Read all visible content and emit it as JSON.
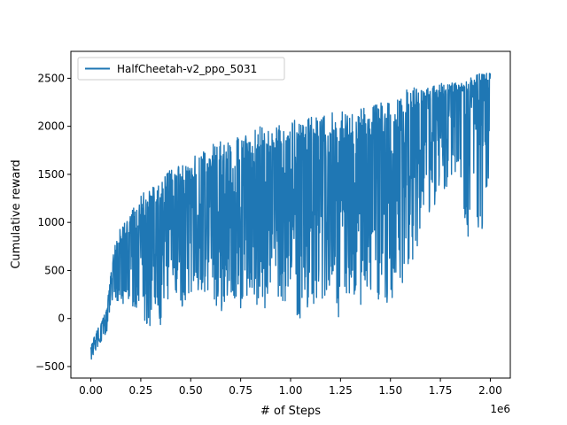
{
  "chart_data": {
    "type": "line",
    "xlabel": "# of Steps",
    "ylabel": "Cumulative reward",
    "x_offset_text": "1e6",
    "x_unit_scale": 1000000,
    "xlim": [
      -0.1,
      2.1
    ],
    "ylim": [
      -620,
      2780
    ],
    "x_ticks": [
      0.0,
      0.25,
      0.5,
      0.75,
      1.0,
      1.25,
      1.5,
      1.75,
      2.0
    ],
    "x_tick_labels": [
      "0.00",
      "0.25",
      "0.50",
      "0.75",
      "1.00",
      "1.25",
      "1.50",
      "1.75",
      "2.00"
    ],
    "y_ticks": [
      -500,
      0,
      500,
      1000,
      1500,
      2000,
      2500
    ],
    "y_tick_labels": [
      "−500",
      "0",
      "500",
      "1000",
      "1500",
      "2000",
      "2500"
    ],
    "grid": false,
    "legend_position": "top-left",
    "series": [
      {
        "name": "HalfCheetah-v2_ppo_5031",
        "color": "#1f77b4",
        "x": [
          0.0,
          0.02,
          0.05,
          0.08,
          0.1,
          0.12,
          0.15,
          0.2,
          0.25,
          0.3,
          0.35,
          0.4,
          0.45,
          0.5,
          0.55,
          0.6,
          0.65,
          0.7,
          0.75,
          0.8,
          0.85,
          0.9,
          0.95,
          1.0,
          1.05,
          1.1,
          1.15,
          1.2,
          1.25,
          1.3,
          1.35,
          1.4,
          1.45,
          1.5,
          1.55,
          1.6,
          1.65,
          1.7,
          1.75,
          1.8,
          1.85,
          1.9,
          1.95,
          2.0
        ],
        "y_upper": [
          -300,
          -150,
          -50,
          100,
          500,
          800,
          950,
          1100,
          1300,
          1350,
          1450,
          1550,
          1600,
          1650,
          1750,
          1800,
          1850,
          1850,
          1900,
          1950,
          2000,
          2000,
          2050,
          2050,
          2100,
          2100,
          2100,
          2150,
          2150,
          2150,
          2200,
          2200,
          2250,
          2300,
          2350,
          2400,
          2400,
          2400,
          2450,
          2450,
          2450,
          2500,
          2550,
          2550
        ],
        "y_lower": [
          -450,
          -350,
          -250,
          -150,
          150,
          150,
          100,
          100,
          0,
          -100,
          -100,
          200,
          100,
          200,
          100,
          300,
          0,
          250,
          0,
          300,
          0,
          200,
          0,
          250,
          -100,
          200,
          0,
          300,
          -100,
          200,
          100,
          300,
          -50,
          200,
          300,
          500,
          800,
          1100,
          1300,
          1400,
          1500,
          500,
          700,
          1500
        ],
        "y_center": [
          -380,
          -250,
          -150,
          -50,
          300,
          450,
          520,
          650,
          700,
          750,
          850,
          950,
          950,
          1050,
          1050,
          1150,
          1050,
          1200,
          1100,
          1250,
          1150,
          1250,
          1150,
          1250,
          1150,
          1250,
          1200,
          1350,
          1200,
          1300,
          1300,
          1350,
          1300,
          1450,
          1550,
          1650,
          1800,
          1950,
          2050,
          2150,
          2200,
          2000,
          2200,
          2350
        ]
      }
    ]
  }
}
